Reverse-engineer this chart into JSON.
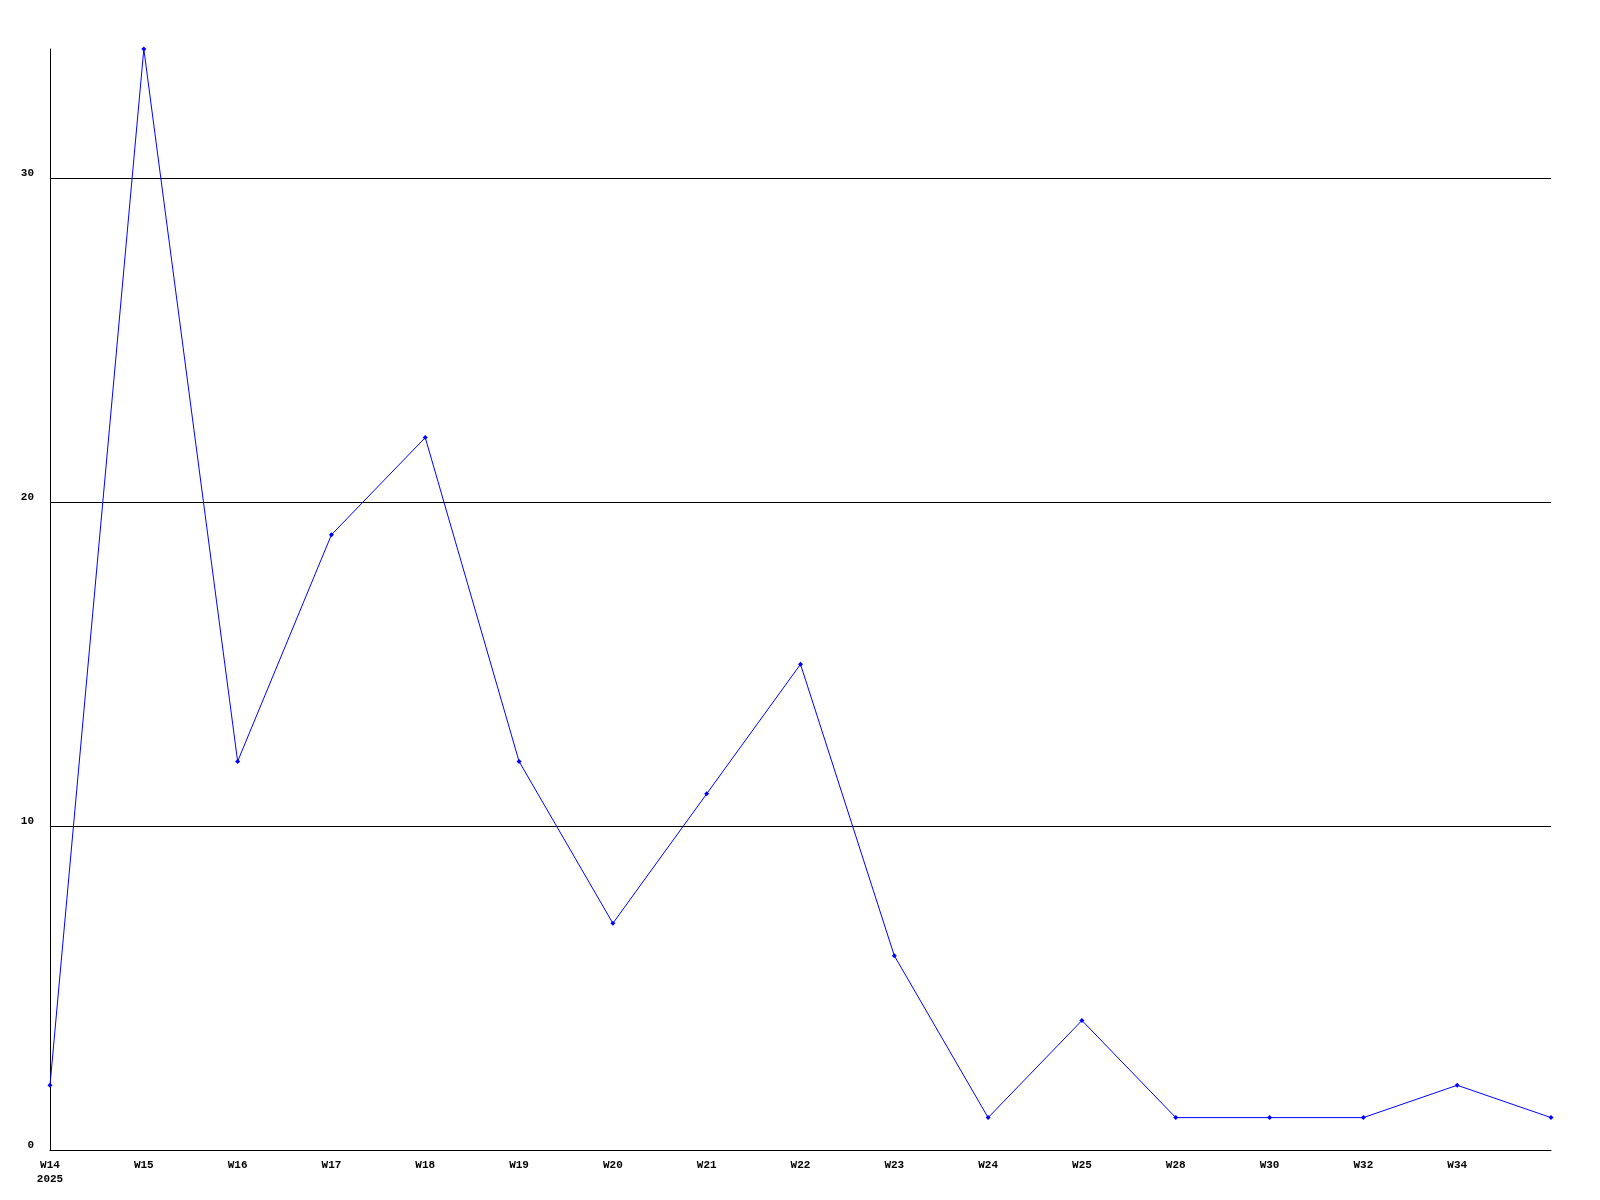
{
  "chart_data": {
    "type": "line",
    "categories": [
      "W14\n2025",
      "W15",
      "W16",
      "W17",
      "W18",
      "W19",
      "W20",
      "W21",
      "W22",
      "W23",
      "W24",
      "W25",
      "W28",
      "W30",
      "W32",
      "W34",
      null
    ],
    "series": [
      {
        "color": "#0000ff",
        "values": [
          2,
          34,
          12,
          19,
          22,
          12,
          7,
          11,
          15,
          6,
          1,
          4,
          1,
          1,
          1,
          2,
          1
        ]
      }
    ],
    "ylim": [
      0,
      34
    ],
    "yticks": [
      0,
      10,
      20,
      30
    ],
    "grid": "y",
    "marker": "diamond",
    "line_style": "solid"
  }
}
